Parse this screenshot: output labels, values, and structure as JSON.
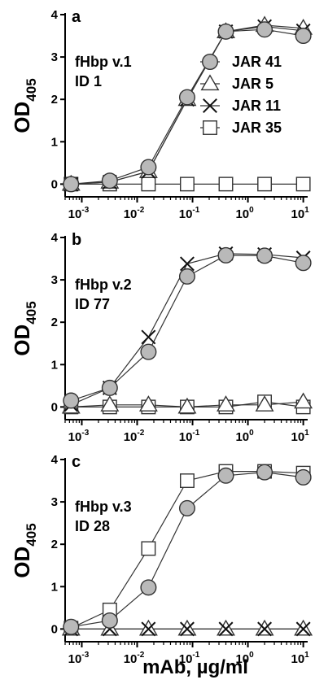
{
  "xlabel": "mAb, µg/ml",
  "chart_data": [
    {
      "type": "line",
      "panel": "a",
      "annotation": [
        "fHbp v.1",
        "ID 1"
      ],
      "ylabel": "OD",
      "ylabel_subscript": "405",
      "xscale": "log",
      "xlim": [
        0.0005,
        12
      ],
      "ylim": [
        -0.3,
        4
      ],
      "yticks": [
        0,
        1,
        2,
        3,
        4
      ],
      "xticks": [
        {
          "value": 0.001,
          "label": "10",
          "exp": "-3"
        },
        {
          "value": 0.01,
          "label": "10",
          "exp": "-2"
        },
        {
          "value": 0.1,
          "label": "10",
          "exp": "-1"
        },
        {
          "value": 1,
          "label": "10",
          "exp": "0"
        },
        {
          "value": 10,
          "label": "10",
          "exp": "1"
        }
      ],
      "legend_position": "right",
      "x": [
        0.00064,
        0.0032,
        0.016,
        0.08,
        0.4,
        2,
        10
      ],
      "series": [
        {
          "name": "JAR 41",
          "marker": "circle",
          "values": [
            0.0,
            0.08,
            0.4,
            2.05,
            3.6,
            3.65,
            3.5
          ]
        },
        {
          "name": "JAR 5",
          "marker": "triangle",
          "values": [
            0.0,
            0.05,
            0.3,
            2.0,
            3.6,
            3.75,
            3.68
          ]
        },
        {
          "name": "JAR 11",
          "marker": "cross",
          "values": [
            0.0,
            0.05,
            0.3,
            2.0,
            3.6,
            3.72,
            3.62
          ]
        },
        {
          "name": "JAR 35",
          "marker": "square",
          "values": [
            0.0,
            0.0,
            0.0,
            0.0,
            0.0,
            0.0,
            0.0
          ]
        }
      ]
    },
    {
      "type": "line",
      "panel": "b",
      "annotation": [
        "fHbp v.2",
        "ID 77"
      ],
      "ylabel": "OD",
      "ylabel_subscript": "405",
      "xscale": "log",
      "xlim": [
        0.0005,
        12
      ],
      "ylim": [
        -0.3,
        4
      ],
      "yticks": [
        0,
        1,
        2,
        3,
        4
      ],
      "xticks": [
        {
          "value": 0.001,
          "label": "10",
          "exp": "-3"
        },
        {
          "value": 0.01,
          "label": "10",
          "exp": "-2"
        },
        {
          "value": 0.1,
          "label": "10",
          "exp": "-1"
        },
        {
          "value": 1,
          "label": "10",
          "exp": "0"
        },
        {
          "value": 10,
          "label": "10",
          "exp": "1"
        }
      ],
      "x": [
        0.00064,
        0.0032,
        0.016,
        0.08,
        0.4,
        2,
        10
      ],
      "series": [
        {
          "name": "JAR 41",
          "marker": "circle",
          "values": [
            0.15,
            0.45,
            1.3,
            3.08,
            3.58,
            3.57,
            3.4
          ]
        },
        {
          "name": "JAR 5",
          "marker": "triangle",
          "values": [
            0.0,
            0.05,
            0.05,
            0.0,
            0.05,
            0.05,
            0.12
          ]
        },
        {
          "name": "JAR 11",
          "marker": "cross",
          "values": [
            0.05,
            0.45,
            1.65,
            3.38,
            3.62,
            3.6,
            3.52
          ]
        },
        {
          "name": "JAR 35",
          "marker": "square",
          "values": [
            0.0,
            0.0,
            0.0,
            0.0,
            0.0,
            0.12,
            0.0
          ]
        }
      ]
    },
    {
      "type": "line",
      "panel": "c",
      "annotation": [
        "fHbp v.3",
        "ID 28"
      ],
      "ylabel": "OD",
      "ylabel_subscript": "405",
      "xscale": "log",
      "xlim": [
        0.0005,
        12
      ],
      "ylim": [
        -0.3,
        4
      ],
      "yticks": [
        0,
        1,
        2,
        3,
        4
      ],
      "xticks": [
        {
          "value": 0.001,
          "label": "10",
          "exp": "-3"
        },
        {
          "value": 0.01,
          "label": "10",
          "exp": "-2"
        },
        {
          "value": 0.1,
          "label": "10",
          "exp": "-1"
        },
        {
          "value": 1,
          "label": "10",
          "exp": "0"
        },
        {
          "value": 10,
          "label": "10",
          "exp": "1"
        }
      ],
      "x": [
        0.00064,
        0.0032,
        0.016,
        0.08,
        0.4,
        2,
        10
      ],
      "series": [
        {
          "name": "JAR 41",
          "marker": "circle",
          "values": [
            0.05,
            0.2,
            0.98,
            2.85,
            3.62,
            3.7,
            3.58
          ]
        },
        {
          "name": "JAR 5",
          "marker": "triangle",
          "values": [
            0.0,
            0.0,
            0.0,
            0.0,
            0.0,
            0.0,
            0.0
          ]
        },
        {
          "name": "JAR 11",
          "marker": "cross",
          "values": [
            0.0,
            0.0,
            0.0,
            0.0,
            0.0,
            0.0,
            0.0
          ]
        },
        {
          "name": "JAR 35",
          "marker": "square",
          "values": [
            0.02,
            0.45,
            1.9,
            3.5,
            3.72,
            3.72,
            3.68
          ]
        }
      ]
    }
  ]
}
